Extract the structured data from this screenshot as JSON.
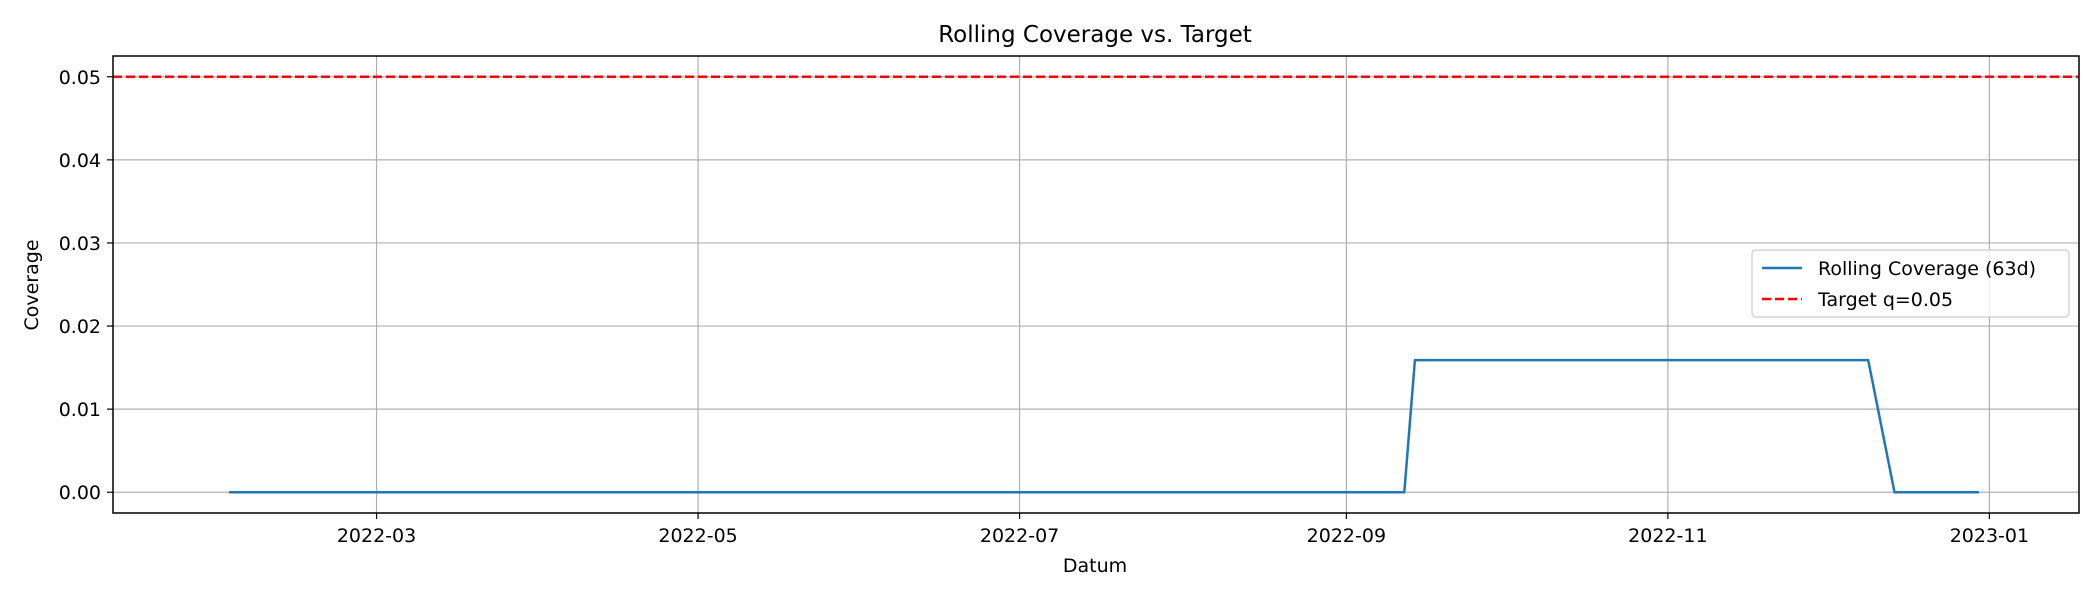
{
  "chart_data": {
    "type": "line",
    "title": "Rolling Coverage vs. Target",
    "xlabel": "Datum",
    "ylabel": "Coverage",
    "x_axis": {
      "type": "date",
      "range": [
        "2022-01-10",
        "2023-01-18"
      ],
      "ticks": [
        "2022-03-01",
        "2022-05-01",
        "2022-07-01",
        "2022-09-01",
        "2022-11-01",
        "2023-01-01"
      ],
      "tick_labels": [
        "2022-03",
        "2022-05",
        "2022-07",
        "2022-09",
        "2022-11",
        "2023-01"
      ]
    },
    "y_axis": {
      "range": [
        -0.0025,
        0.0525
      ],
      "ticks": [
        0.0,
        0.01,
        0.02,
        0.03,
        0.04,
        0.05
      ],
      "tick_labels": [
        "0.00",
        "0.01",
        "0.02",
        "0.03",
        "0.04",
        "0.05"
      ]
    },
    "grid": true,
    "legend_position": "center-right",
    "series": [
      {
        "name": "Rolling Coverage (63d)",
        "style": "solid",
        "color": "#1f77b4",
        "points": [
          {
            "x": "2022-02-01",
            "y": 0.0
          },
          {
            "x": "2022-09-12",
            "y": 0.0
          },
          {
            "x": "2022-09-14",
            "y": 0.0159
          },
          {
            "x": "2022-12-09",
            "y": 0.0159
          },
          {
            "x": "2022-12-14",
            "y": 0.0
          },
          {
            "x": "2022-12-30",
            "y": 0.0
          }
        ]
      },
      {
        "name": "Target q=0.05",
        "style": "dashed",
        "color": "#ff0000",
        "hline": 0.05
      }
    ]
  }
}
